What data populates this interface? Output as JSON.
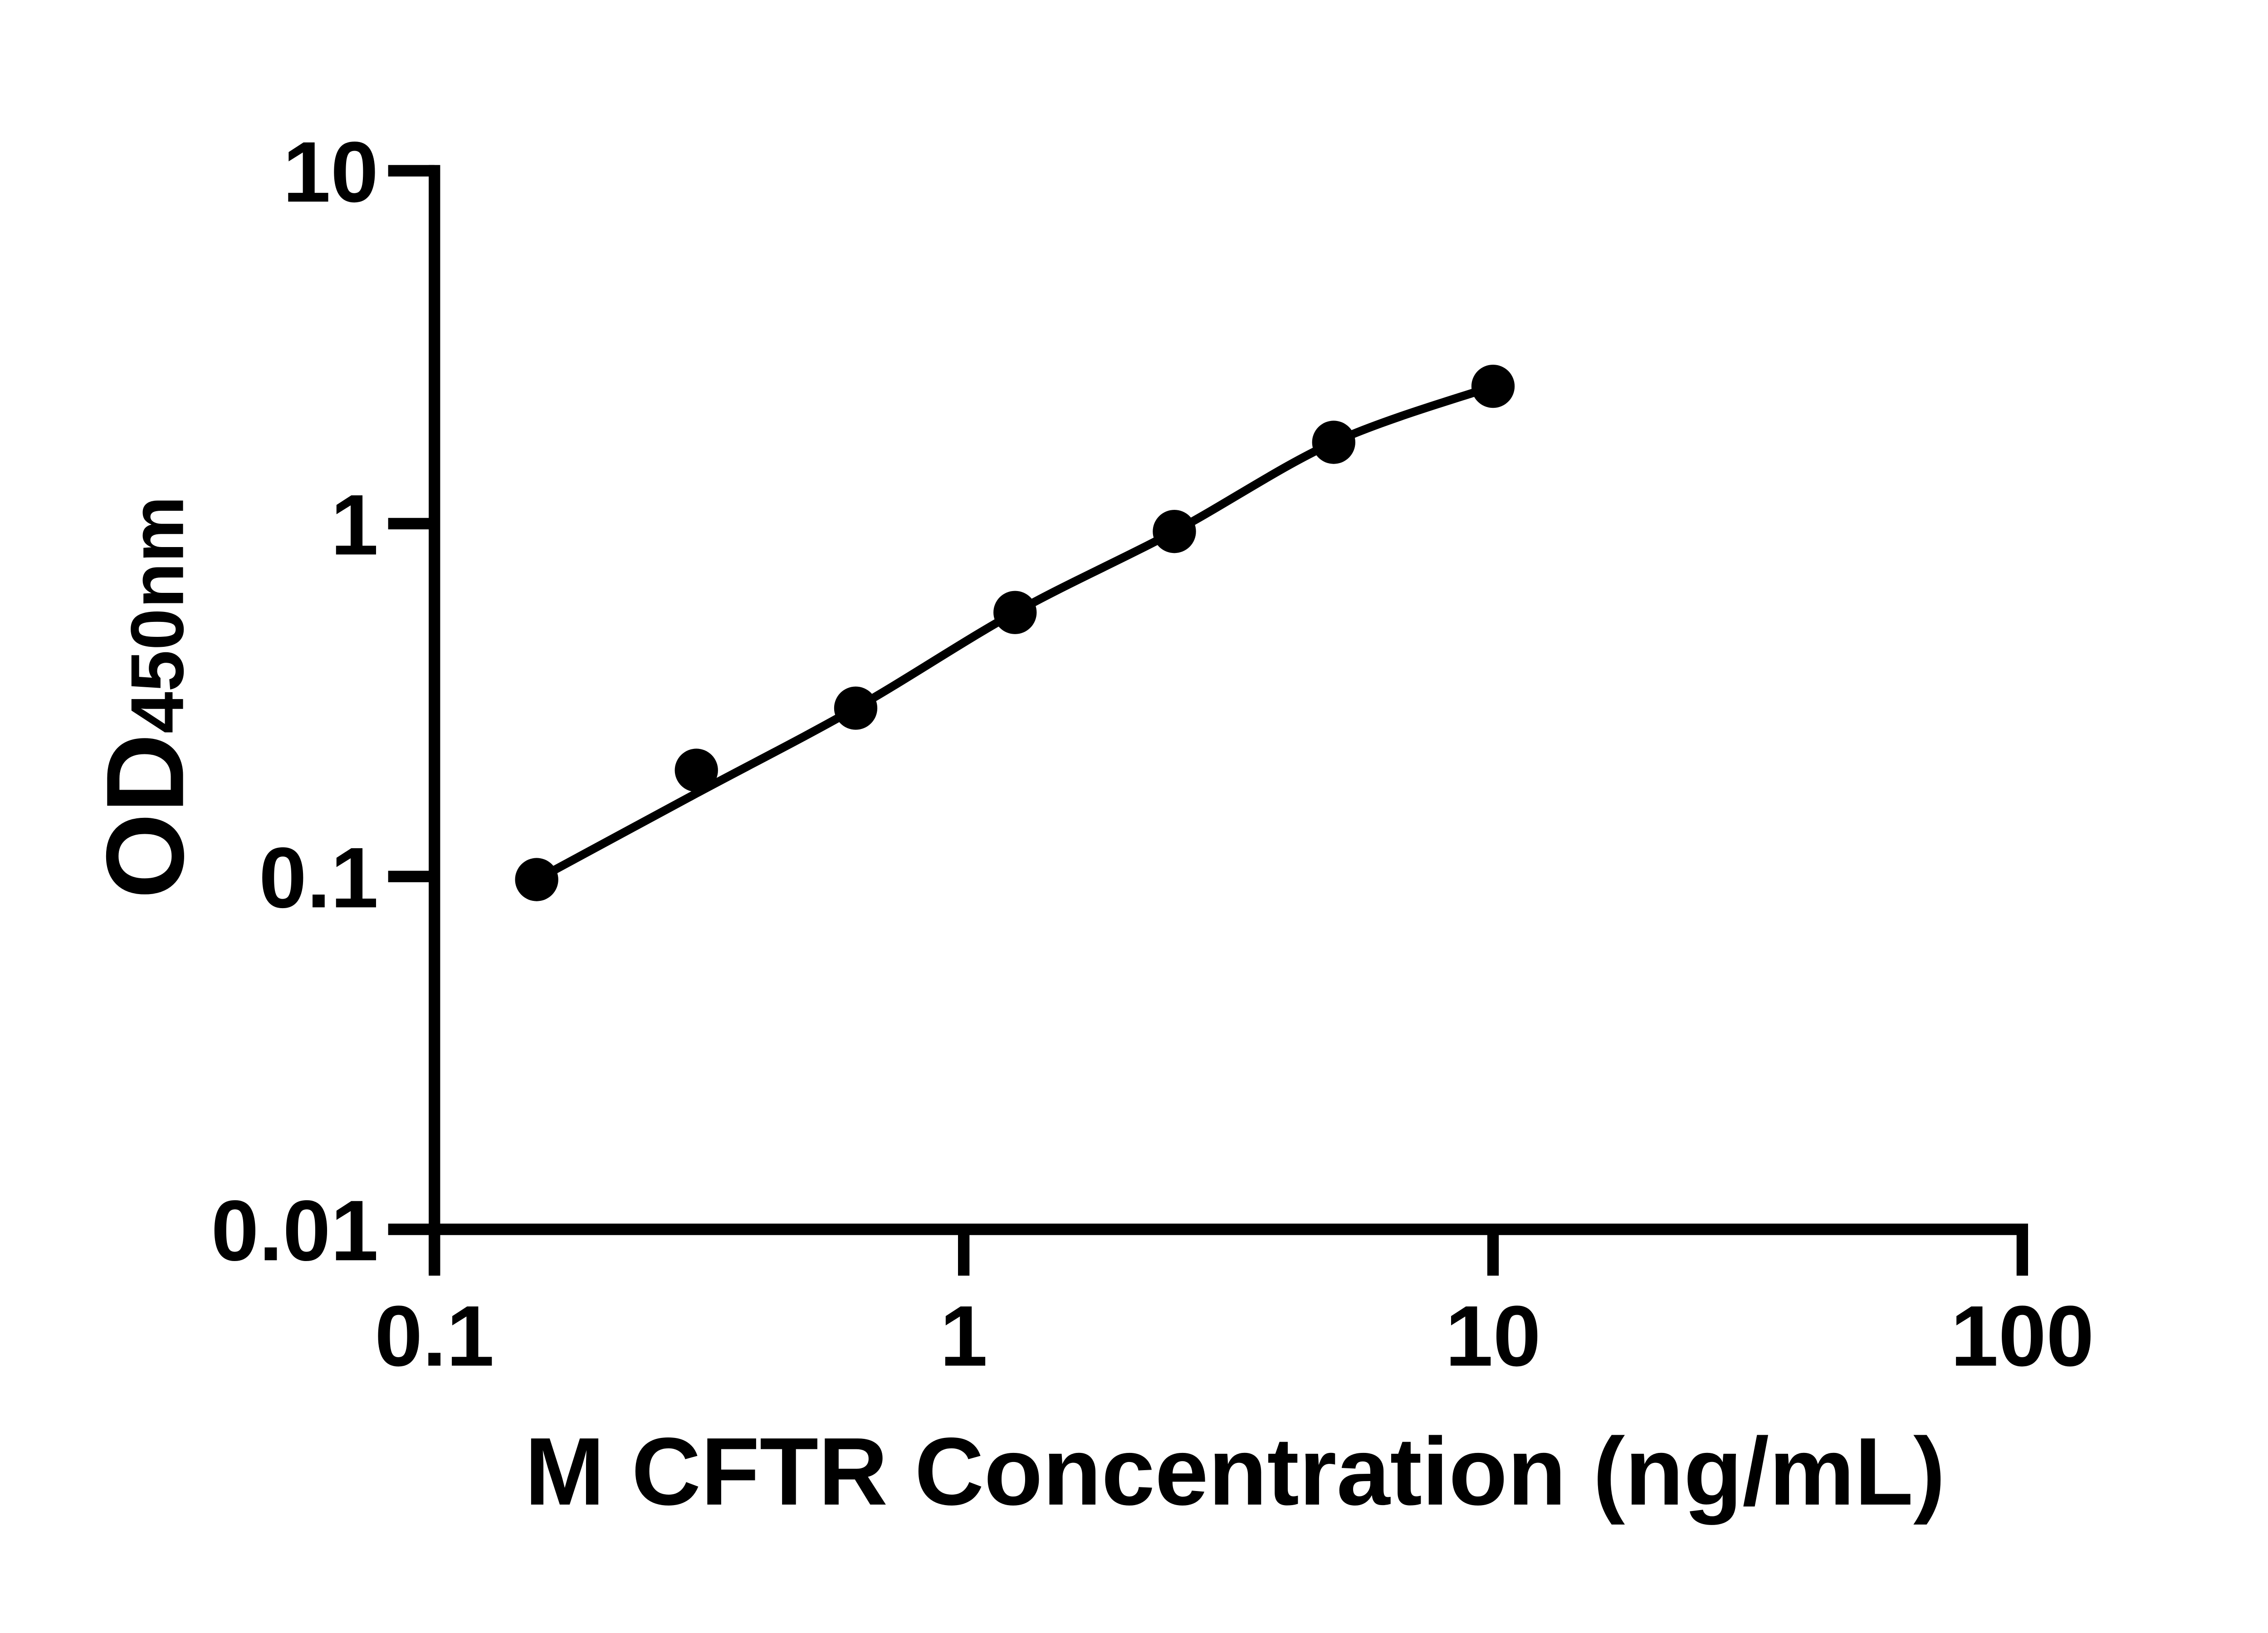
{
  "page": {
    "background": "#ffffff",
    "ink": "#000000"
  },
  "chart_data": {
    "type": "scatter",
    "subtype": "line-through-points-log-log",
    "title": "",
    "xlabel": "M CFTR Concentration (ng/mL)",
    "ylabel_main": "OD",
    "ylabel_sub": "450nm",
    "x_scale": "log10",
    "y_scale": "log10",
    "xlim": [
      0.1,
      100
    ],
    "ylim": [
      0.01,
      10
    ],
    "grid": false,
    "legend_position": "none",
    "x_ticks": [
      {
        "value": 0.1,
        "label": "0.1"
      },
      {
        "value": 1,
        "label": "1"
      },
      {
        "value": 10,
        "label": "10"
      },
      {
        "value": 100,
        "label": "100"
      }
    ],
    "y_ticks": [
      {
        "value": 10,
        "label": "10"
      },
      {
        "value": 1,
        "label": "1"
      },
      {
        "value": 0.1,
        "label": "0.1"
      },
      {
        "value": 0.01,
        "label": "0.01"
      }
    ],
    "points": [
      {
        "x": 0.156,
        "y": 0.098
      },
      {
        "x": 0.3125,
        "y": 0.2
      },
      {
        "x": 0.625,
        "y": 0.3
      },
      {
        "x": 1.25,
        "y": 0.56
      },
      {
        "x": 2.5,
        "y": 0.95
      },
      {
        "x": 5,
        "y": 1.7
      },
      {
        "x": 10,
        "y": 2.45
      }
    ],
    "fit_curve": [
      {
        "x": 0.156,
        "y": 0.098
      },
      {
        "x": 0.3125,
        "y": 0.172
      },
      {
        "x": 0.625,
        "y": 0.3
      },
      {
        "x": 1.25,
        "y": 0.56
      },
      {
        "x": 2.5,
        "y": 0.95
      },
      {
        "x": 5,
        "y": 1.7
      },
      {
        "x": 10,
        "y": 2.45
      }
    ],
    "marker_color": "#000000",
    "line_color": "#000000",
    "axis_color": "#000000"
  }
}
